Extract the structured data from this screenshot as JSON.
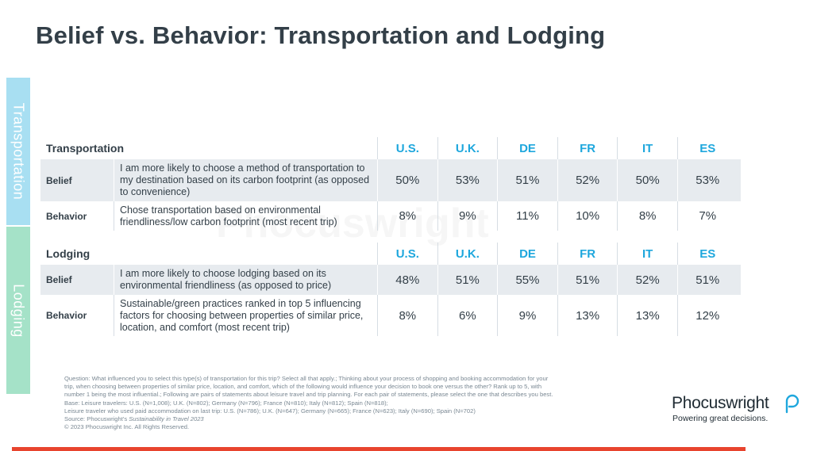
{
  "title": "Belief vs. Behavior: Transportation and Lodging",
  "side_tabs": {
    "transportation": "Transportation",
    "lodging": "Lodging"
  },
  "columns": [
    "U.S.",
    "U.K.",
    "DE",
    "FR",
    "IT",
    "ES"
  ],
  "watermark": "Phocuswright",
  "transportation": {
    "heading": "Transportation",
    "rows": [
      {
        "label": "Belief",
        "statement": "I am more likely to choose a method of transportation to my destination based on its carbon footprint (as opposed to convenience)",
        "values": [
          "50%",
          "53%",
          "51%",
          "52%",
          "50%",
          "53%"
        ]
      },
      {
        "label": "Behavior",
        "statement": "Chose transportation based on environmental friendliness/low carbon footprint (most recent trip)",
        "values": [
          "8%",
          "9%",
          "11%",
          "10%",
          "8%",
          "7%"
        ]
      }
    ]
  },
  "lodging": {
    "heading": "Lodging",
    "rows": [
      {
        "label": "Belief",
        "statement": "I am more likely to choose lodging based on its environmental friendliness (as opposed to price)",
        "values": [
          "48%",
          "51%",
          "55%",
          "51%",
          "52%",
          "51%"
        ]
      },
      {
        "label": "Behavior",
        "statement": "Sustainable/green practices ranked in top 5 influencing factors for choosing between properties of similar price, location, and comfort (most recent trip)",
        "values": [
          "8%",
          "6%",
          "9%",
          "13%",
          "13%",
          "12%"
        ]
      }
    ]
  },
  "footnote": {
    "lines": [
      "Question: What influenced you to select this type(s) of transportation for this trip? Select all that apply.; Thinking about your process of shopping and booking accommodation for your",
      "trip, when choosing between properties of similar price, location, and comfort, which of the following would influence your decision to book one versus the other? Rank up to 5, with",
      "number 1 being the most influential.; Following are pairs of statements about leisure travel and trip planning. For each pair of statements, please select the one that describes you best.",
      "Base: Leisure travelers: U.S. (N=1,008); U.K. (N=802); Germany (N=796); France (N=810); Italy (N=812); Spain (N=818);",
      "Leisure traveler who used paid accommodation on last trip: U.S. (N=786); U.K. (N=647); Germany (N=665); France (N=623); Italy (N=690); Spain (N=702)"
    ],
    "source_prefix": "Source: Phocuswright's ",
    "source_title": "Sustainability in Travel 2023",
    "copyright": "© 2023 Phocuswright Inc. All Rights Reserved."
  },
  "logo": {
    "name": "Phocuswright",
    "tagline": "Powering great decisions."
  },
  "colors": {
    "accent_blue": "#1ea7dd",
    "tab_transportation": "#a8dff2",
    "tab_lodging": "#a5e2c8",
    "bottom_bar": "#e8442e",
    "row_shade": "#e7ebef"
  }
}
